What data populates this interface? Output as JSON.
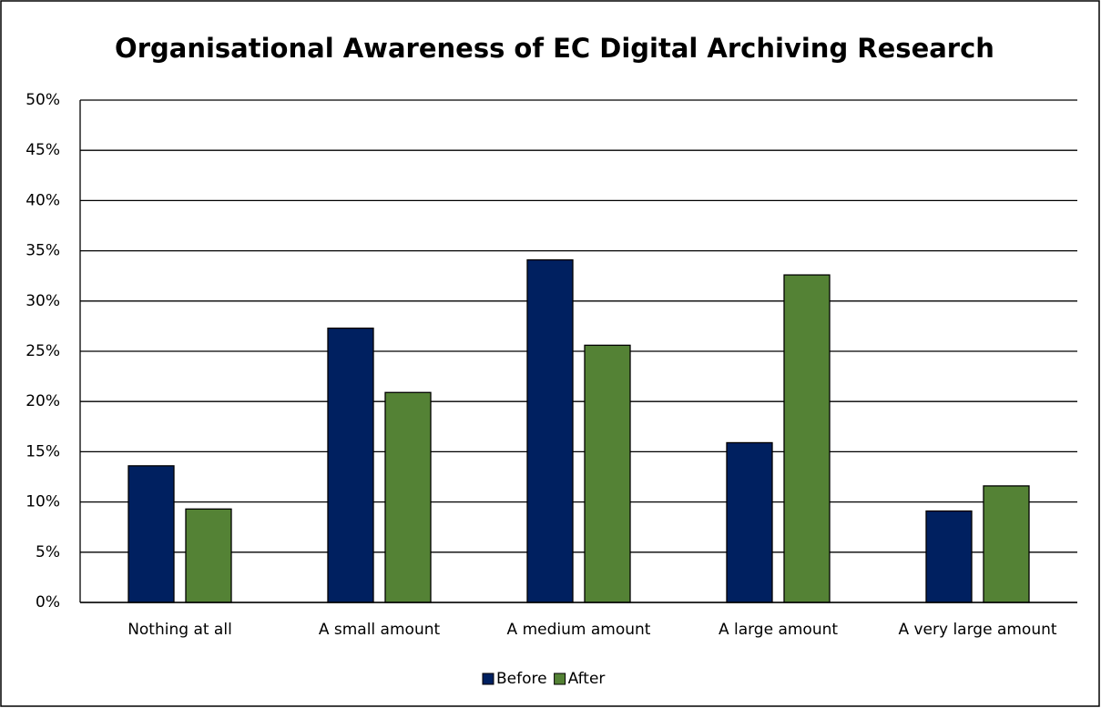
{
  "chart_data": {
    "type": "bar",
    "title": "Organisational Awareness of EC Digital Archiving Research",
    "categories": [
      "Nothing at all",
      "A small amount",
      "A medium amount",
      "A large amount",
      "A very large amount"
    ],
    "series": [
      {
        "name": "Before",
        "color": "#002060",
        "values": [
          13.6,
          27.3,
          34.1,
          15.9,
          9.1
        ]
      },
      {
        "name": "After",
        "color": "#548235",
        "values": [
          9.3,
          20.9,
          25.6,
          32.6,
          11.6
        ]
      }
    ],
    "ylim": [
      0,
      50
    ],
    "yticks": [
      {
        "value": 0,
        "label": "0%"
      },
      {
        "value": 5,
        "label": "5%"
      },
      {
        "value": 10,
        "label": "10%"
      },
      {
        "value": 15,
        "label": "15%"
      },
      {
        "value": 20,
        "label": "20%"
      },
      {
        "value": 25,
        "label": "25%"
      },
      {
        "value": 30,
        "label": "30%"
      },
      {
        "value": 35,
        "label": "35%"
      },
      {
        "value": 40,
        "label": "40%"
      },
      {
        "value": 45,
        "label": "45%"
      },
      {
        "value": 50,
        "label": "50%"
      }
    ],
    "grid": true,
    "legend": "bottom"
  }
}
